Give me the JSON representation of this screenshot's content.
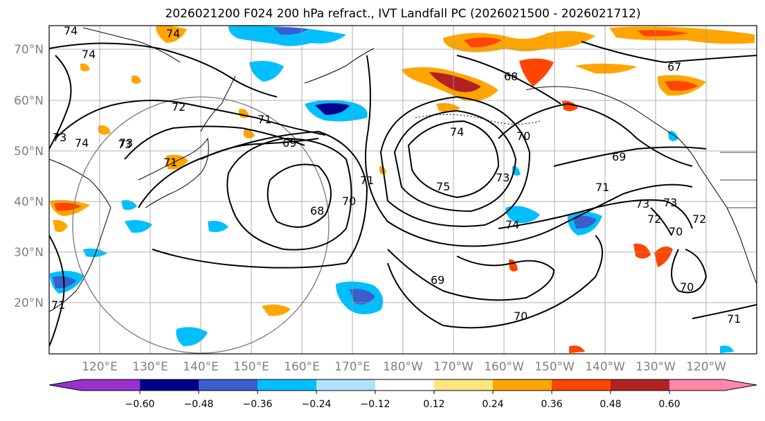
{
  "title": "2026021200 F024 200 hPa refract., IVT Landfall PC (2026021500 - 2026021712)",
  "map": {
    "lat_labels": [
      "70°N",
      "60°N",
      "50°N",
      "40°N",
      "30°N",
      "20°N"
    ],
    "lon_labels": [
      "120°E",
      "130°E",
      "140°E",
      "150°E",
      "160°E",
      "170°E",
      "180°W",
      "170°W",
      "160°W",
      "150°W",
      "140°W",
      "130°W",
      "120°W"
    ],
    "contour_labels": [
      "74",
      "74",
      "72",
      "71",
      "73",
      "74",
      "73",
      "71",
      "69",
      "71",
      "70",
      "68",
      "74",
      "70",
      "75",
      "73",
      "74",
      "69",
      "69",
      "70",
      "72",
      "73",
      "73",
      "72",
      "70",
      "71",
      "70",
      "71",
      "67",
      "68",
      "71",
      "73",
      "74"
    ]
  },
  "colorbar": {
    "tick_labels": [
      "−0.60",
      "−0.48",
      "−0.36",
      "−0.24",
      "−0.12",
      "0.12",
      "0.24",
      "0.36",
      "0.48",
      "0.60"
    ],
    "colors": [
      "#9932cc",
      "#00008b",
      "#3a5fcd",
      "#00bfff",
      "#b0e2ff",
      "#ffffff",
      "#ffe680",
      "#ffa500",
      "#ff4500",
      "#b22222",
      "#ff88aa",
      "#ff88aa"
    ]
  }
}
